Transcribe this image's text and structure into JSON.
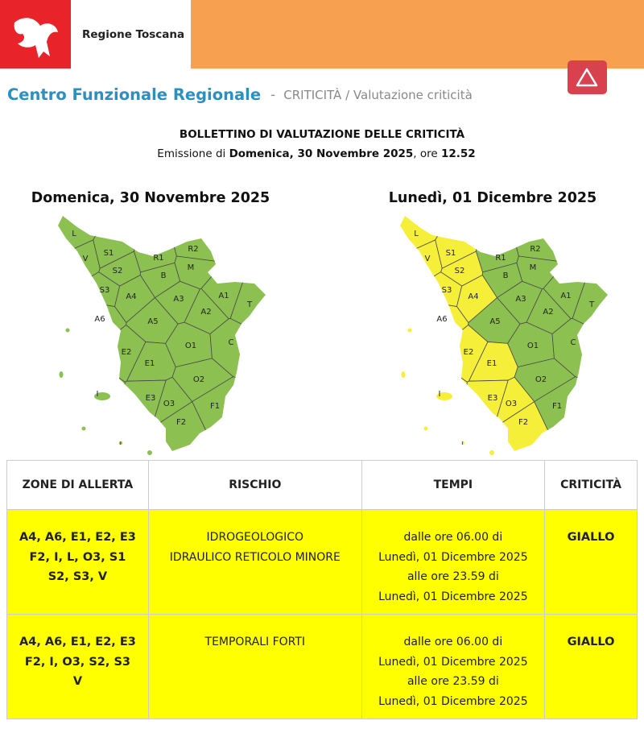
{
  "header": {
    "brand": "Regione Toscana"
  },
  "breadcrumb": {
    "title": "Centro Funzionale Regionale",
    "separator": "-",
    "path": "CRITICITÀ / Valutazione criticità"
  },
  "bulletin": {
    "title": "BOLLETTINO DI VALUTAZIONE DELLE CRITICITÀ",
    "emission_prefix": "Emissione di",
    "emission_date": "Domenica, 30 Novembre 2025",
    "emission_mid": ", ore",
    "emission_time": "12.52"
  },
  "map_zones": [
    "L",
    "V",
    "S1",
    "S2",
    "S3",
    "R1",
    "R2",
    "M",
    "B",
    "A4",
    "A3",
    "A1",
    "A2",
    "T",
    "A6",
    "A5",
    "O1",
    "C",
    "E2",
    "E1",
    "O2",
    "E3",
    "O3",
    "F1",
    "F2",
    "I"
  ],
  "maps": [
    {
      "title": "Domenica, 30 Novembre 2025",
      "zone_colors": [
        "#8cc152",
        "#8cc152",
        "#8cc152",
        "#8cc152",
        "#8cc152",
        "#8cc152",
        "#8cc152",
        "#8cc152",
        "#8cc152",
        "#8cc152",
        "#8cc152",
        "#8cc152",
        "#8cc152",
        "#8cc152",
        "#8cc152",
        "#8cc152",
        "#8cc152",
        "#8cc152",
        "#8cc152",
        "#8cc152",
        "#8cc152",
        "#8cc152",
        "#8cc152",
        "#8cc152",
        "#8cc152",
        "#8cc152"
      ]
    },
    {
      "title": "Lunedì, 01 Dicembre 2025",
      "zone_colors": [
        "#f6ef3a",
        "#f6ef3a",
        "#f6ef3a",
        "#f6ef3a",
        "#f6ef3a",
        "#8cc152",
        "#8cc152",
        "#8cc152",
        "#8cc152",
        "#f6ef3a",
        "#8cc152",
        "#8cc152",
        "#8cc152",
        "#8cc152",
        "#f6ef3a",
        "#8cc152",
        "#8cc152",
        "#8cc152",
        "#f6ef3a",
        "#f6ef3a",
        "#8cc152",
        "#f6ef3a",
        "#f6ef3a",
        "#8cc152",
        "#f6ef3a",
        "#f6ef3a"
      ]
    }
  ],
  "table": {
    "headers": [
      "ZONE DI ALLERTA",
      "RISCHIO",
      "TEMPI",
      "CRITICITÀ"
    ],
    "rows": [
      [
        [
          "A4, A6, E1, E2, E3",
          "F2, I, L, O3, S1",
          "S2, S3, V"
        ],
        [
          "IDROGEOLOGICO",
          "IDRAULICO RETICOLO MINORE"
        ],
        [
          "dalle ore 06.00 di",
          "Lunedì, 01 Dicembre 2025",
          "alle ore 23.59 di",
          "Lunedì, 01 Dicembre 2025"
        ],
        [
          "GIALLO"
        ]
      ],
      [
        [
          "A4, A6, E1, E2, E3",
          "F2, I, O3, S2, S3",
          "V"
        ],
        [
          "TEMPORALI FORTI"
        ],
        [
          "dalle ore 06.00 di",
          "Lunedì, 01 Dicembre 2025",
          "alle ore 23.59 di",
          "Lunedì, 01 Dicembre 2025"
        ],
        [
          "GIALLO"
        ]
      ]
    ]
  }
}
